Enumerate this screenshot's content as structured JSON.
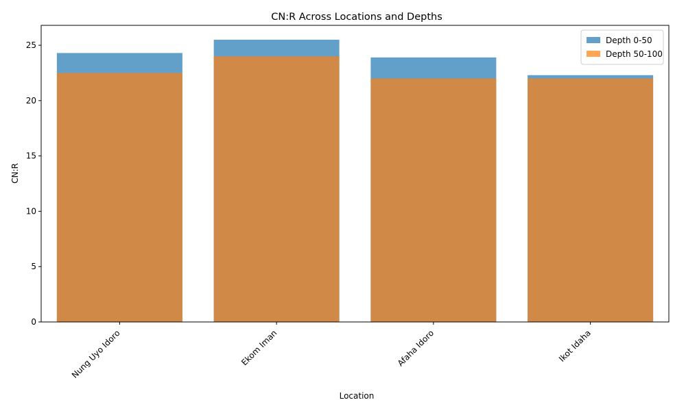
{
  "chart_data": {
    "type": "bar",
    "title": "CN:R Across Locations and Depths",
    "xlabel": "Location",
    "ylabel": "CN:R",
    "categories": [
      "Nung Uyo Idoro",
      "Ekom Iman",
      "Afaha Idoro",
      "Ikot Idaha"
    ],
    "series": [
      {
        "name": "Depth 0-50",
        "values": [
          24.3,
          25.5,
          23.9,
          22.3
        ],
        "color": "#1f77b4",
        "opacity": 0.7
      },
      {
        "name": "Depth 50-100",
        "values": [
          22.5,
          24.0,
          22.0,
          22.0
        ],
        "color": "#ff7f0e",
        "opacity": 0.7
      }
    ],
    "ylim": [
      0,
      26.8
    ],
    "yticks": [
      0,
      5,
      10,
      15,
      20,
      25
    ],
    "x_tick_rotation": 45,
    "overlaid": true,
    "grid": false,
    "legend_position": "top-right"
  }
}
